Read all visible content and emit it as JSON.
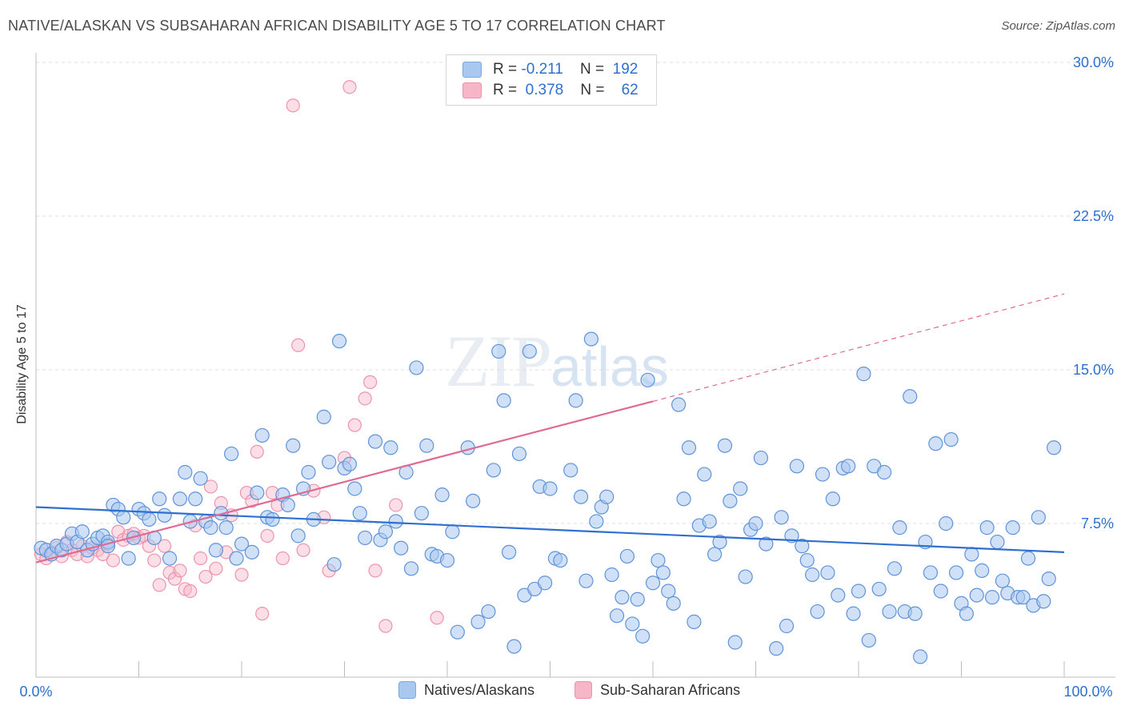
{
  "header": {
    "title": "NATIVE/ALASKAN VS SUBSAHARAN AFRICAN DISABILITY AGE 5 TO 17 CORRELATION CHART",
    "source": "Source: ZipAtlas.com"
  },
  "watermark": {
    "zip": "ZIP",
    "atlas": "atlas"
  },
  "legend": {
    "rows": [
      {
        "r_label": "R =",
        "r_value": "-0.211",
        "n_label": "N =",
        "n_value": "192",
        "color": "#a9c8f0"
      },
      {
        "r_label": "R =",
        "r_value": "0.378",
        "n_label": "N =",
        "n_value": "62",
        "color": "#f7b6c8"
      }
    ]
  },
  "bottom_legend": {
    "items": [
      {
        "label": "Natives/Alaskans",
        "color": "#a9c8f0"
      },
      {
        "label": "Sub-Saharan Africans",
        "color": "#f7b6c8"
      }
    ]
  },
  "chart_data": {
    "type": "scatter",
    "title": "NATIVE/ALASKAN VS SUBSAHARAN AFRICAN DISABILITY AGE 5 TO 17 CORRELATION CHART",
    "xlabel": "",
    "ylabel": "Disability Age 5 to 17",
    "xlim": [
      0,
      100
    ],
    "ylim": [
      0,
      30
    ],
    "x_tick_labels": [
      "0.0%",
      "100.0%"
    ],
    "y_ticks": [
      7.5,
      15.0,
      22.5,
      30.0
    ],
    "y_tick_labels": [
      "7.5%",
      "15.0%",
      "22.5%",
      "30.0%"
    ],
    "grid": true,
    "legend_position": "top-center",
    "colors": {
      "native_fill": "#a9c8f0",
      "native_line": "#2f6fd0",
      "african_fill": "#f7b6c8",
      "african_line": "#e06a93",
      "tick_text": "#2f6fd0"
    },
    "series": [
      {
        "name": "Natives/Alaskans",
        "r": -0.211,
        "n": 192,
        "trend": {
          "x": [
            0,
            100
          ],
          "y": [
            8.3,
            6.1
          ]
        },
        "points": [
          [
            0.5,
            6.3
          ],
          [
            1.0,
            6.2
          ],
          [
            1.5,
            6.0
          ],
          [
            2.0,
            6.4
          ],
          [
            2.5,
            6.2
          ],
          [
            3,
            6.5
          ],
          [
            3.5,
            7.0
          ],
          [
            4,
            6.6
          ],
          [
            4.5,
            7.1
          ],
          [
            5,
            6.2
          ],
          [
            5.5,
            6.5
          ],
          [
            6,
            6.8
          ],
          [
            6.5,
            6.9
          ],
          [
            7,
            6.6
          ],
          [
            7.5,
            8.4
          ],
          [
            8,
            8.2
          ],
          [
            8.5,
            7.8
          ],
          [
            9,
            5.8
          ],
          [
            9.5,
            6.8
          ],
          [
            10,
            8.2
          ],
          [
            10.5,
            8.0
          ],
          [
            11,
            7.7
          ],
          [
            11.5,
            6.8
          ],
          [
            12,
            8.7
          ],
          [
            12.5,
            7.9
          ],
          [
            13,
            5.8
          ],
          [
            14,
            8.7
          ],
          [
            14.5,
            10.0
          ],
          [
            15,
            7.6
          ],
          [
            15.5,
            8.7
          ],
          [
            16,
            9.7
          ],
          [
            16.5,
            7.6
          ],
          [
            17,
            7.3
          ],
          [
            17.5,
            6.2
          ],
          [
            18,
            8.0
          ],
          [
            18.5,
            7.3
          ],
          [
            19,
            10.9
          ],
          [
            19.5,
            5.8
          ],
          [
            20,
            6.5
          ],
          [
            21,
            6.1
          ],
          [
            21.5,
            9.0
          ],
          [
            22,
            11.8
          ],
          [
            22.5,
            7.8
          ],
          [
            23,
            7.7
          ],
          [
            24,
            8.9
          ],
          [
            24.5,
            8.4
          ],
          [
            25,
            11.3
          ],
          [
            25.5,
            6.9
          ],
          [
            26,
            9.2
          ],
          [
            26.5,
            10.0
          ],
          [
            27,
            7.7
          ],
          [
            28,
            12.7
          ],
          [
            28.5,
            10.5
          ],
          [
            29,
            5.5
          ],
          [
            29.5,
            16.4
          ],
          [
            30,
            10.2
          ],
          [
            30.5,
            10.4
          ],
          [
            31,
            9.2
          ],
          [
            31.5,
            8.0
          ],
          [
            32,
            6.8
          ],
          [
            33,
            11.5
          ],
          [
            33.5,
            6.7
          ],
          [
            34,
            7.1
          ],
          [
            34.5,
            11.2
          ],
          [
            35,
            7.6
          ],
          [
            35.5,
            6.3
          ],
          [
            36,
            10.0
          ],
          [
            36.5,
            5.3
          ],
          [
            37,
            15.1
          ],
          [
            37.5,
            8.0
          ],
          [
            38,
            11.3
          ],
          [
            38.5,
            6.0
          ],
          [
            39,
            5.9
          ],
          [
            39.5,
            8.9
          ],
          [
            40,
            5.7
          ],
          [
            40.5,
            7.1
          ],
          [
            41,
            2.2
          ],
          [
            42,
            11.2
          ],
          [
            42.5,
            8.6
          ],
          [
            43,
            2.7
          ],
          [
            44,
            3.2
          ],
          [
            44.5,
            10.1
          ],
          [
            45,
            15.9
          ],
          [
            45.5,
            13.5
          ],
          [
            46,
            6.1
          ],
          [
            46.5,
            1.5
          ],
          [
            47,
            10.9
          ],
          [
            47.5,
            4.0
          ],
          [
            48,
            15.9
          ],
          [
            48.5,
            4.3
          ],
          [
            49,
            9.3
          ],
          [
            49.5,
            4.6
          ],
          [
            50,
            9.2
          ],
          [
            50.5,
            5.8
          ],
          [
            51,
            5.7
          ],
          [
            52,
            10.1
          ],
          [
            52.5,
            13.5
          ],
          [
            53,
            8.8
          ],
          [
            53.5,
            4.7
          ],
          [
            54,
            16.5
          ],
          [
            54.5,
            7.6
          ],
          [
            55,
            8.3
          ],
          [
            55.5,
            8.8
          ],
          [
            56,
            5.0
          ],
          [
            56.5,
            3.0
          ],
          [
            57,
            3.9
          ],
          [
            57.5,
            5.9
          ],
          [
            58,
            2.6
          ],
          [
            58.5,
            3.8
          ],
          [
            59,
            2.0
          ],
          [
            59.5,
            14.5
          ],
          [
            60,
            4.6
          ],
          [
            60.5,
            5.7
          ],
          [
            61,
            5.1
          ],
          [
            61.5,
            4.2
          ],
          [
            62,
            3.6
          ],
          [
            62.5,
            13.3
          ],
          [
            63,
            8.7
          ],
          [
            63.5,
            11.2
          ],
          [
            64,
            2.7
          ],
          [
            64.5,
            7.4
          ],
          [
            65,
            9.9
          ],
          [
            65.5,
            7.6
          ],
          [
            66,
            6.0
          ],
          [
            66.5,
            6.6
          ],
          [
            67,
            11.3
          ],
          [
            67.5,
            8.6
          ],
          [
            68,
            1.7
          ],
          [
            68.5,
            9.2
          ],
          [
            69,
            4.9
          ],
          [
            69.5,
            7.2
          ],
          [
            70,
            7.5
          ],
          [
            70.5,
            10.7
          ],
          [
            71,
            6.5
          ],
          [
            72,
            1.4
          ],
          [
            72.5,
            7.8
          ],
          [
            73,
            2.5
          ],
          [
            73.5,
            6.9
          ],
          [
            74,
            10.3
          ],
          [
            74.5,
            6.4
          ],
          [
            75,
            5.7
          ],
          [
            75.5,
            5.0
          ],
          [
            76,
            3.2
          ],
          [
            76.5,
            9.9
          ],
          [
            77,
            5.1
          ],
          [
            77.5,
            8.7
          ],
          [
            78,
            4.0
          ],
          [
            78.5,
            10.2
          ],
          [
            79,
            10.3
          ],
          [
            79.5,
            3.1
          ],
          [
            80,
            4.2
          ],
          [
            80.5,
            14.8
          ],
          [
            81,
            1.8
          ],
          [
            81.5,
            10.3
          ],
          [
            82,
            4.3
          ],
          [
            82.5,
            10.0
          ],
          [
            83,
            3.2
          ],
          [
            83.5,
            5.3
          ],
          [
            84,
            7.3
          ],
          [
            84.5,
            3.2
          ],
          [
            85,
            13.7
          ],
          [
            85.5,
            3.1
          ],
          [
            86,
            1.0
          ],
          [
            86.5,
            6.6
          ],
          [
            87,
            5.1
          ],
          [
            87.5,
            11.4
          ],
          [
            88,
            4.2
          ],
          [
            88.5,
            7.5
          ],
          [
            89,
            11.6
          ],
          [
            89.5,
            5.1
          ],
          [
            90,
            3.6
          ],
          [
            90.5,
            3.1
          ],
          [
            91,
            6.0
          ],
          [
            91.5,
            4.0
          ],
          [
            92,
            5.2
          ],
          [
            92.5,
            7.3
          ],
          [
            93,
            3.9
          ],
          [
            93.5,
            6.6
          ],
          [
            94,
            4.7
          ],
          [
            94.5,
            4.1
          ],
          [
            95,
            7.3
          ],
          [
            95.5,
            3.9
          ],
          [
            96,
            3.9
          ],
          [
            96.5,
            5.8
          ],
          [
            97,
            3.5
          ],
          [
            97.5,
            7.8
          ],
          [
            98,
            3.7
          ],
          [
            98.5,
            4.8
          ],
          [
            99,
            11.2
          ],
          [
            7,
            6.4
          ]
        ]
      },
      {
        "name": "Sub-Saharan Africans",
        "r": 0.378,
        "n": 62,
        "trend": {
          "x": [
            0,
            100
          ],
          "y": [
            5.6,
            18.7
          ]
        },
        "trend_solid_until": 60,
        "points": [
          [
            0.5,
            6.0
          ],
          [
            1.0,
            5.8
          ],
          [
            1.5,
            6.1
          ],
          [
            2,
            6.3
          ],
          [
            2.5,
            5.9
          ],
          [
            3,
            6.6
          ],
          [
            3.5,
            6.2
          ],
          [
            4,
            6.0
          ],
          [
            4.5,
            6.4
          ],
          [
            5,
            5.9
          ],
          [
            5.5,
            6.3
          ],
          [
            6,
            6.2
          ],
          [
            6.5,
            6.0
          ],
          [
            7,
            6.5
          ],
          [
            7.5,
            5.7
          ],
          [
            8,
            7.1
          ],
          [
            8.5,
            6.7
          ],
          [
            9,
            6.9
          ],
          [
            9.5,
            7.0
          ],
          [
            10,
            6.8
          ],
          [
            10.5,
            6.9
          ],
          [
            11,
            6.4
          ],
          [
            11.5,
            5.7
          ],
          [
            12,
            4.5
          ],
          [
            12.5,
            6.4
          ],
          [
            13,
            5.1
          ],
          [
            13.5,
            4.8
          ],
          [
            14,
            5.2
          ],
          [
            14.5,
            4.3
          ],
          [
            15,
            4.2
          ],
          [
            15.5,
            7.4
          ],
          [
            16,
            5.8
          ],
          [
            16.5,
            4.9
          ],
          [
            17,
            9.3
          ],
          [
            17.5,
            5.3
          ],
          [
            18,
            8.5
          ],
          [
            18.5,
            6.1
          ],
          [
            19,
            7.9
          ],
          [
            20,
            5.0
          ],
          [
            20.5,
            9.0
          ],
          [
            21,
            8.6
          ],
          [
            21.5,
            11.0
          ],
          [
            22,
            3.1
          ],
          [
            22.5,
            6.9
          ],
          [
            23,
            9.0
          ],
          [
            23.5,
            8.4
          ],
          [
            24,
            5.8
          ],
          [
            25,
            27.9
          ],
          [
            25.5,
            16.2
          ],
          [
            26,
            6.2
          ],
          [
            27,
            9.1
          ],
          [
            28,
            7.8
          ],
          [
            28.5,
            5.2
          ],
          [
            30,
            10.7
          ],
          [
            30.5,
            28.8
          ],
          [
            31,
            12.3
          ],
          [
            32,
            13.6
          ],
          [
            32.5,
            14.4
          ],
          [
            33,
            5.2
          ],
          [
            34,
            2.5
          ],
          [
            35,
            8.4
          ],
          [
            39,
            2.9
          ]
        ]
      }
    ]
  }
}
